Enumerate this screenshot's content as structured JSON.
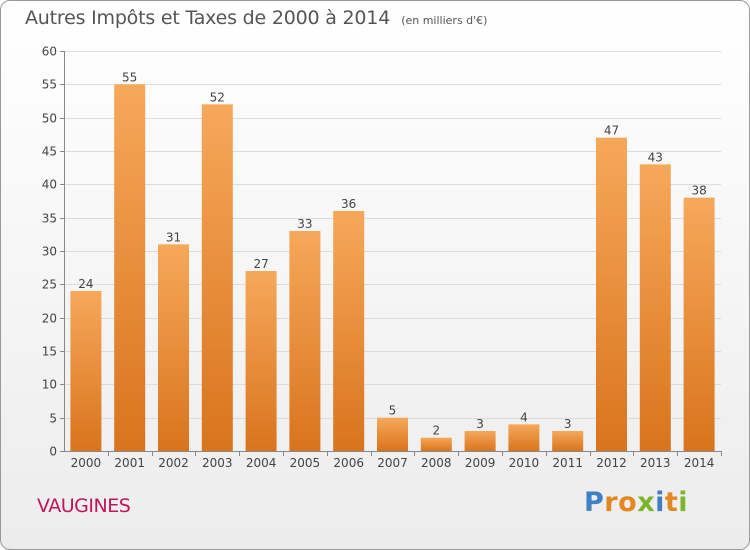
{
  "chart_data": {
    "type": "bar",
    "title": "Autres Impôts et Taxes de 2000 à 2014",
    "subtitle": "(en milliers d'€)",
    "categories": [
      "2000",
      "2001",
      "2002",
      "2003",
      "2004",
      "2005",
      "2006",
      "2007",
      "2008",
      "2009",
      "2010",
      "2011",
      "2012",
      "2013",
      "2014"
    ],
    "values": [
      24,
      55,
      31,
      52,
      27,
      33,
      36,
      5,
      2,
      3,
      4,
      3,
      47,
      43,
      38
    ],
    "ylim": [
      0,
      60
    ],
    "yticks": [
      0,
      5,
      10,
      15,
      20,
      25,
      30,
      35,
      40,
      45,
      50,
      55,
      60
    ],
    "xlabel": "",
    "ylabel": "",
    "grid": true,
    "bar_color_top": "#f6a85a",
    "bar_color_bottom": "#d9741d"
  },
  "footer": {
    "commune": "VAUGINES",
    "commune_color": "#c0165b",
    "brand_letters": [
      {
        "ch": "P",
        "color": "#3f7fc4"
      },
      {
        "ch": "r",
        "color": "#e2881f"
      },
      {
        "ch": "o",
        "color": "#e2881f"
      },
      {
        "ch": "x",
        "color": "#7ab62b"
      },
      {
        "ch": "i",
        "color": "#3f7fc4"
      },
      {
        "ch": "t",
        "color": "#e2881f"
      },
      {
        "ch": "i",
        "color": "#7ab62b"
      }
    ]
  }
}
